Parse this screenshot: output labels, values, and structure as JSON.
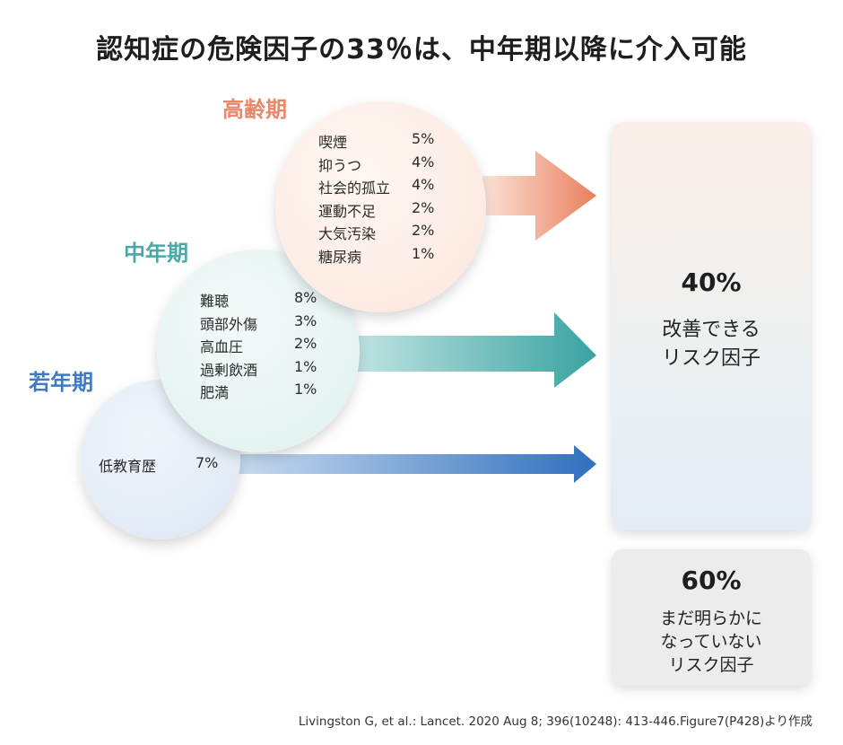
{
  "title": "認知症の危険因子の33％は、中年期以降に介入可能",
  "stages": {
    "elderly": {
      "label": "高齢期",
      "color": "#e8886a",
      "factors": [
        {
          "name": "喫煙",
          "pct": "5%"
        },
        {
          "name": "抑うつ",
          "pct": "4%"
        },
        {
          "name": "社会的孤立",
          "pct": "4%"
        },
        {
          "name": "運動不足",
          "pct": "2%"
        },
        {
          "name": "大気汚染",
          "pct": "2%"
        },
        {
          "name": "糖尿病",
          "pct": "1%"
        }
      ]
    },
    "middle": {
      "label": "中年期",
      "color": "#4aa8a6",
      "factors": [
        {
          "name": "難聴",
          "pct": "8%"
        },
        {
          "name": "頭部外傷",
          "pct": "3%"
        },
        {
          "name": "高血圧",
          "pct": "2%"
        },
        {
          "name": "過剰飲酒",
          "pct": "1%"
        },
        {
          "name": "肥満",
          "pct": "1%"
        }
      ]
    },
    "young": {
      "label": "若年期",
      "color": "#3f7bbf",
      "factors": [
        {
          "name": "低教育歴",
          "pct": "7%"
        }
      ]
    }
  },
  "modifiable": {
    "pct": "40%",
    "line1": "改善できる",
    "line2": "リスク因子"
  },
  "unknown": {
    "pct": "60%",
    "line1": "まだ明らかに",
    "line2": "なっていない",
    "line3": "リスク因子"
  },
  "citation": "Livingston G, et al.: Lancet. 2020 Aug 8; 396(10248): 413-446.Figure7(P428)より作成"
}
